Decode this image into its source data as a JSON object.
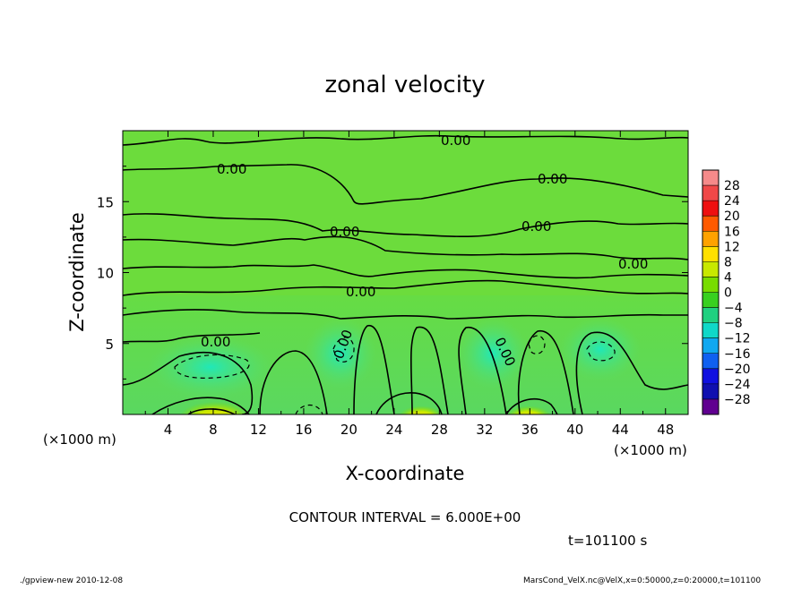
{
  "chart_data": {
    "type": "heatmap",
    "title": "zonal velocity",
    "xlabel": "X-coordinate",
    "ylabel": "Z-coordinate",
    "x_unit": "(×1000 m)",
    "x_unit_right": "(×1000 m)",
    "xlim": [
      0,
      50
    ],
    "ylim": [
      0,
      20
    ],
    "x_ticks": [
      "4",
      "8",
      "12",
      "16",
      "20",
      "24",
      "28",
      "32",
      "36",
      "40",
      "44",
      "48"
    ],
    "y_ticks": [
      "5",
      "10",
      "15"
    ],
    "contour_interval": "CONTOUR INTERVAL = 6.000E+00",
    "time_label": "t=101100 s",
    "contour_labels": [
      "0.00",
      "0.00",
      "0.00",
      "0.00",
      "0.00",
      "0.00",
      "0.00",
      "0.00",
      "0.00",
      "0.00"
    ],
    "colorbar": {
      "levels": [
        "28",
        "24",
        "20",
        "16",
        "12",
        "8",
        "4",
        "0",
        "−4",
        "−8",
        "−12",
        "−16",
        "−20",
        "−24",
        "−28"
      ],
      "colors": [
        "#f58a8a",
        "#f04848",
        "#ee1010",
        "#ff5a00",
        "#ffa200",
        "#ffe000",
        "#c8e800",
        "#78dc00",
        "#38d020",
        "#20d080",
        "#10d8c8",
        "#10a8f0",
        "#1060f0",
        "#1010e0",
        "#1010b0",
        "#600090"
      ]
    }
  },
  "footer": {
    "left": "./gpview-new  2010-12-08",
    "right": "MarsCond_VelX.nc@VelX,x=0:50000,z=0:20000,t=101100"
  }
}
